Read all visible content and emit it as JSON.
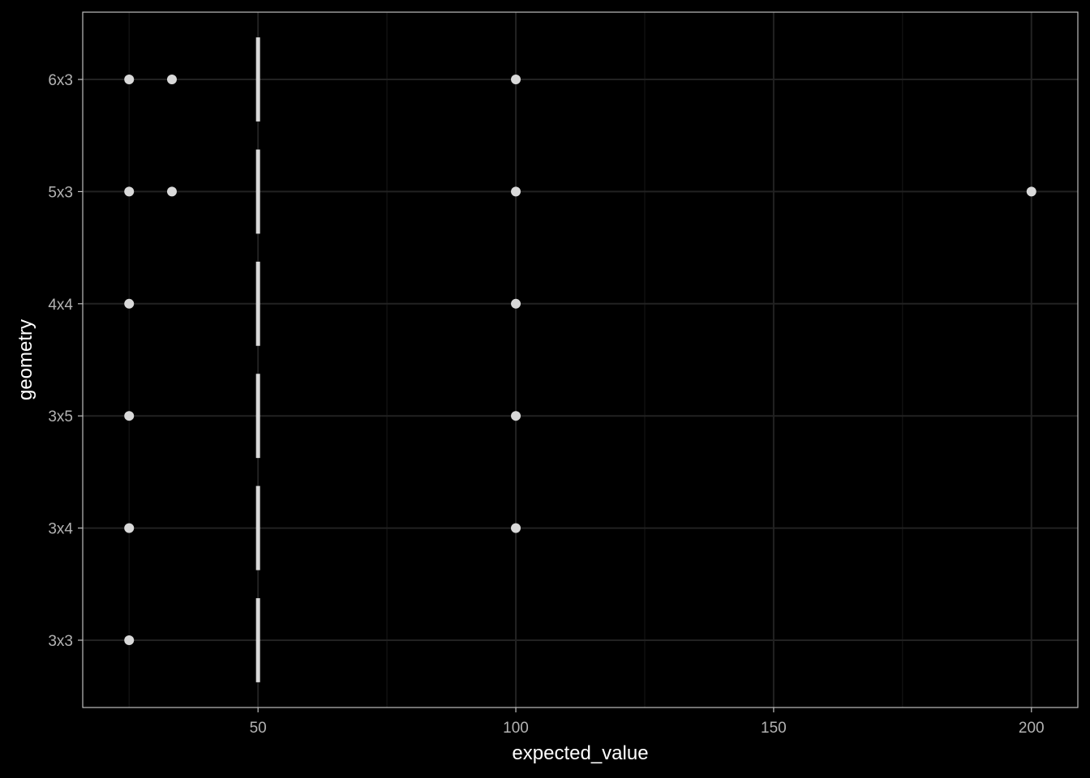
{
  "chart_data": {
    "type": "scatter",
    "title": "",
    "xlabel": "expected_value",
    "ylabel": "geometry",
    "x_ticks": [
      50,
      100,
      150,
      200
    ],
    "xlim": [
      16,
      209
    ],
    "y_categories": [
      "3x3",
      "3x4",
      "3x5",
      "4x4",
      "5x3",
      "6x3"
    ],
    "points": [
      {
        "geometry": "6x3",
        "x": 25
      },
      {
        "geometry": "6x3",
        "x": 33.3
      },
      {
        "geometry": "6x3",
        "x": 100
      },
      {
        "geometry": "5x3",
        "x": 25
      },
      {
        "geometry": "5x3",
        "x": 33.3
      },
      {
        "geometry": "5x3",
        "x": 100
      },
      {
        "geometry": "5x3",
        "x": 200
      },
      {
        "geometry": "4x4",
        "x": 25
      },
      {
        "geometry": "4x4",
        "x": 100
      },
      {
        "geometry": "3x5",
        "x": 25
      },
      {
        "geometry": "3x5",
        "x": 100
      },
      {
        "geometry": "3x4",
        "x": 25
      },
      {
        "geometry": "3x4",
        "x": 100
      },
      {
        "geometry": "3x3",
        "x": 25
      }
    ],
    "reference_segments": [
      {
        "geometry": "6x3",
        "x": 50
      },
      {
        "geometry": "5x3",
        "x": 50
      },
      {
        "geometry": "4x4",
        "x": 50
      },
      {
        "geometry": "3x5",
        "x": 50
      },
      {
        "geometry": "3x4",
        "x": 50
      },
      {
        "geometry": "3x3",
        "x": 50
      }
    ],
    "grid": true,
    "legend": "none",
    "colors": {
      "background": "#000000",
      "grid_major": "#222222",
      "grid_minor": "#141414",
      "panel_border": "#bfbfbf",
      "point": "#d9d9d9",
      "segment": "#d9d9d9",
      "tick_label": "#b3b3b3",
      "axis_title": "#ffffff"
    }
  }
}
